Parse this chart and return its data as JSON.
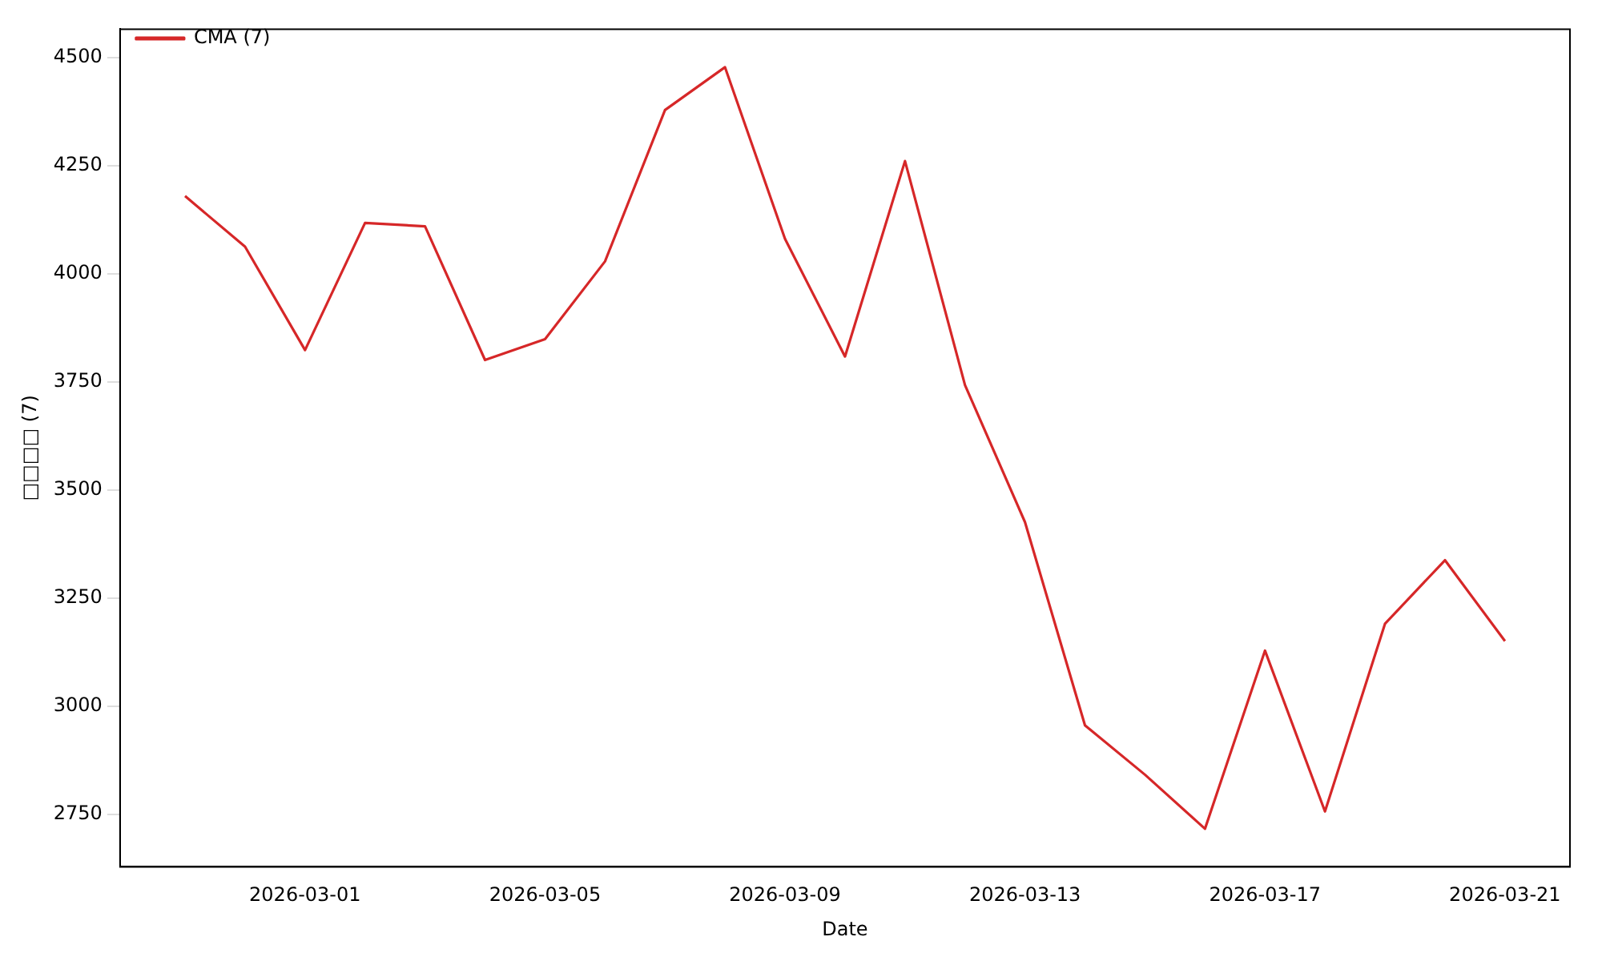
{
  "chart_data": {
    "type": "line",
    "xlabel": "Date",
    "ylabel": "□□□□ (7)",
    "x": [
      "2026-02-27",
      "2026-02-28",
      "2026-03-01",
      "2026-03-02",
      "2026-03-03",
      "2026-03-04",
      "2026-03-05",
      "2026-03-06",
      "2026-03-07",
      "2026-03-08",
      "2026-03-09",
      "2026-03-10",
      "2026-03-11",
      "2026-03-12",
      "2026-03-13",
      "2026-03-14",
      "2026-03-15",
      "2026-03-16",
      "2026-03-17",
      "2026-03-18",
      "2026-03-19",
      "2026-03-20",
      "2026-03-21"
    ],
    "series": [
      {
        "name": "CMA (7)",
        "color": "#d62728",
        "values": [
          4180,
          4063,
          3824,
          4118,
          4110,
          3801,
          3849,
          4029,
          4379,
          4478,
          4081,
          3809,
          4261,
          3743,
          3426,
          2956,
          2842,
          2717,
          3129,
          2757,
          3191,
          3338,
          3151
        ]
      }
    ],
    "xlim": [
      "2026-02-25T22:00",
      "2026-03-22T02:00"
    ],
    "xticks": [
      "2026-03-01",
      "2026-03-05",
      "2026-03-09",
      "2026-03-13",
      "2026-03-17",
      "2026-03-21"
    ],
    "ylim": [
      2629,
      4566
    ],
    "yticks": [
      2750,
      3000,
      3250,
      3500,
      3750,
      4000,
      4250,
      4500
    ],
    "legend": "top left",
    "grid": false,
    "marker": "none",
    "line_style": "solid"
  }
}
